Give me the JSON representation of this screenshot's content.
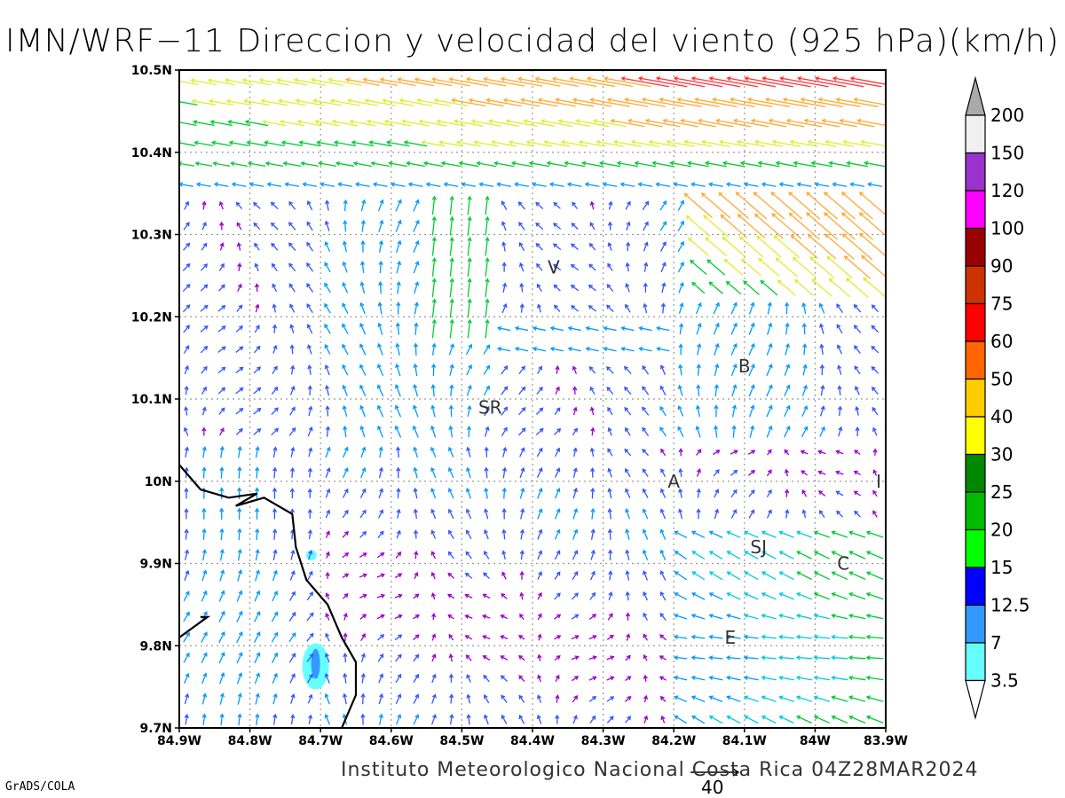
{
  "title": "IMN/WRF−11 Direccion y velocidad del viento (925 hPa)(km/h)",
  "credit": "Instituto Meteorologico Nacional Costa Rica 04Z28MAR2024",
  "software": "GrADS/COLA",
  "reference_vector": {
    "label": "40"
  },
  "axes": {
    "lon_ticks": [
      "84.9W",
      "84.8W",
      "84.7W",
      "84.6W",
      "84.5W",
      "84.4W",
      "84.3W",
      "84.2W",
      "84.1W",
      "84W",
      "83.9W"
    ],
    "lat_ticks": [
      "10.5N",
      "10.4N",
      "10.3N",
      "10.2N",
      "10.1N",
      "10N",
      "9.9N",
      "9.8N",
      "9.7N"
    ],
    "lon_range": [
      -84.9,
      -83.9
    ],
    "lat_range": [
      9.7,
      10.5
    ],
    "grid": true
  },
  "place_labels": [
    {
      "text": "V",
      "lon": -84.37,
      "lat": 10.26
    },
    {
      "text": "B",
      "lon": -84.1,
      "lat": 10.14
    },
    {
      "text": "SR",
      "lon": -84.46,
      "lat": 10.09
    },
    {
      "text": "A",
      "lon": -84.2,
      "lat": 10.0
    },
    {
      "text": "I",
      "lon": -83.91,
      "lat": 10.0
    },
    {
      "text": "SJ",
      "lon": -84.08,
      "lat": 9.92
    },
    {
      "text": "C",
      "lon": -83.96,
      "lat": 9.9
    },
    {
      "text": "E",
      "lon": -84.12,
      "lat": 9.81
    }
  ],
  "colorbar": {
    "labels": [
      "200",
      "150",
      "120",
      "100",
      "90",
      "75",
      "60",
      "50",
      "40",
      "30",
      "25",
      "20",
      "15",
      "12.5",
      "7",
      "3.5"
    ],
    "colors": [
      "#aaaaaa",
      "#f0f0f0",
      "#9933cc",
      "#ff00ff",
      "#990000",
      "#cc3300",
      "#ff0000",
      "#ff6600",
      "#ffcc00",
      "#ffff00",
      "#008800",
      "#00bb00",
      "#00ff00",
      "#0000ff",
      "#3399ff",
      "#66ffff",
      "#ffffff"
    ]
  },
  "speed_colors": {
    "low": "#9900cc",
    "mid": "#3355ff",
    "mid2": "#0099ff",
    "mid3": "#00ccdd",
    "green": "#00cc33",
    "yellow": "#ddee33",
    "orange": "#ffaa33",
    "red": "#ff3333",
    "magenta": "#ff0099"
  },
  "features": {
    "coast_color": "#000000",
    "shade_light": "#66ffff",
    "shade_dark": "#3399ff"
  }
}
